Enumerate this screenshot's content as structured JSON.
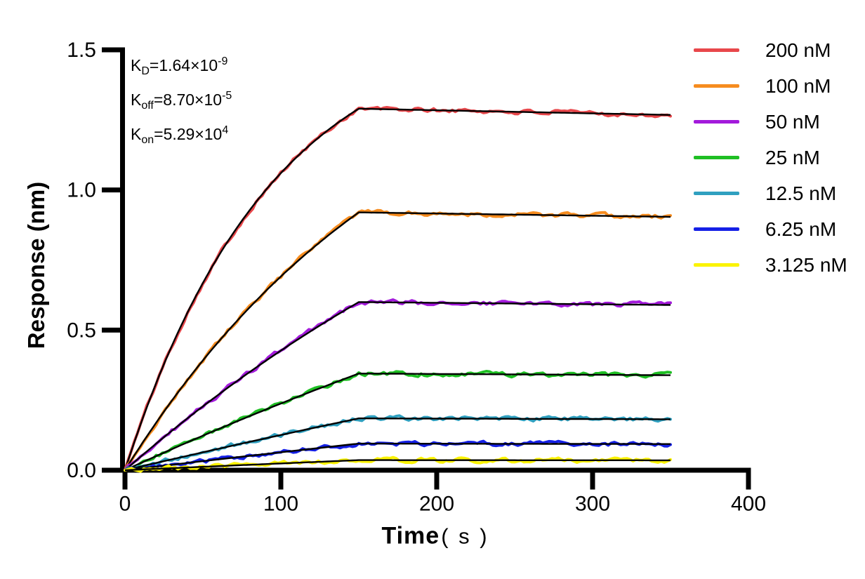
{
  "figure": {
    "background": "#ffffff"
  },
  "chart_data": {
    "type": "line",
    "title": "",
    "xlabel": "Time",
    "xlabel_unit": "( s )",
    "ylabel": "Response (nm)",
    "xlim": [
      0,
      400
    ],
    "ylim": [
      0,
      1.5
    ],
    "x_ticks": [
      0,
      100,
      200,
      300,
      400
    ],
    "x_tick_labels": [
      "0",
      "100",
      "200",
      "300",
      "400"
    ],
    "y_ticks": [
      0,
      0.5,
      1.0,
      1.5
    ],
    "y_tick_labels": [
      "0.0",
      "0.5",
      "1.0",
      "1.5"
    ],
    "grid": false,
    "legend_position": "right-outside",
    "association_end_s": 150,
    "data_end_s": 350,
    "kinetics": {
      "kd_display": "1.64×10⁻⁹",
      "koff_display": "8.70×10⁻⁵",
      "kon_display": "5.29×10⁴",
      "kd_M": 1.64e-09,
      "koff_per_s": 8.7e-05,
      "kon_per_M_s": 52900
    },
    "annotation": {
      "lines": [
        {
          "name": "kd-line",
          "base": "K",
          "sub": "D",
          "eq": "=1.64×10",
          "sup": "-9"
        },
        {
          "name": "koff-line",
          "base": "K",
          "sub": "off",
          "eq": "=8.70×10",
          "sup": "-5"
        },
        {
          "name": "kon-line",
          "base": "K",
          "sub": "on",
          "eq": "=5.29×10",
          "sup": "4"
        }
      ]
    },
    "fit_line_color": "#000000",
    "series": [
      {
        "label": "200 nM",
        "color": "#E8474B",
        "plateau_nm": 1.29,
        "kobs_per_s": 0.01067,
        "seed": 101
      },
      {
        "label": "100 nM",
        "color": "#F68C1F",
        "plateau_nm": 0.92,
        "kobs_per_s": 0.00538,
        "seed": 202
      },
      {
        "label": "50 nM",
        "color": "#A31ADB",
        "plateau_nm": 0.6,
        "kobs_per_s": 0.00273,
        "seed": 303
      },
      {
        "label": "25 nM",
        "color": "#1FBF24",
        "plateau_nm": 0.345,
        "kobs_per_s": 0.00141,
        "seed": 404
      },
      {
        "label": "12.5 nM",
        "color": "#2FA0C0",
        "plateau_nm": 0.185,
        "kobs_per_s": 0.000748,
        "seed": 505
      },
      {
        "label": "6.25 nM",
        "color": "#1520E6",
        "plateau_nm": 0.095,
        "kobs_per_s": 0.000418,
        "seed": 606
      },
      {
        "label": "3.125 nM",
        "color": "#FBF303",
        "plateau_nm": 0.036,
        "kobs_per_s": 0.000252,
        "seed": 707
      }
    ],
    "noise_amplitude_nm": 0.007
  }
}
